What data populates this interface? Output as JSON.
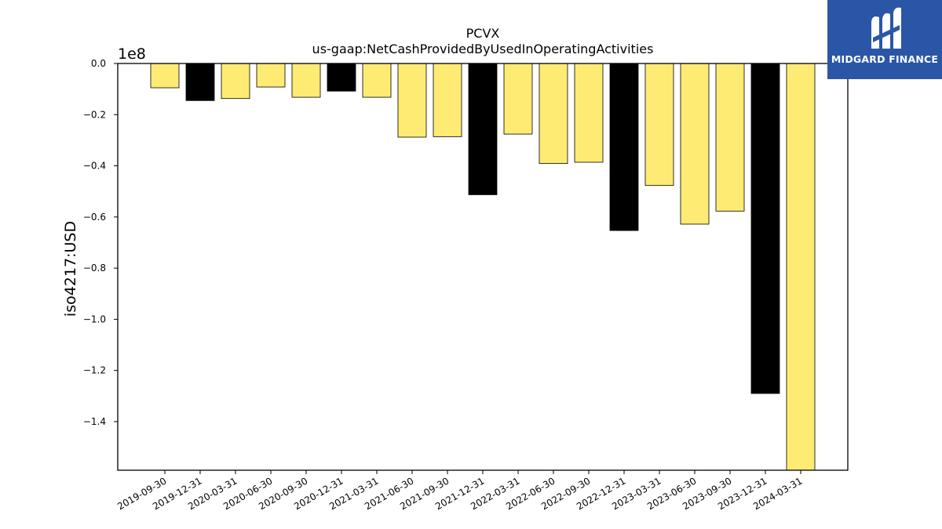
{
  "chart_data": {
    "type": "bar",
    "title": "PCVX",
    "subtitle": "us-gaap:NetCashProvidedByUsedInOperatingActivities",
    "ylabel": "iso4217:USD",
    "xlabel": "",
    "offset_label": "1e8",
    "ylim": [
      -159000000.0,
      0
    ],
    "yticks": [
      0.0,
      -0.2,
      -0.4,
      -0.6,
      -0.8,
      -1.0,
      -1.2,
      -1.4
    ],
    "yticklabels": [
      "0.0",
      "−0.2",
      "−0.4",
      "−0.6",
      "−0.8",
      "−1.0",
      "−1.2",
      "−1.4"
    ],
    "categories": [
      "2019-09-30",
      "2019-12-31",
      "2020-03-31",
      "2020-06-30",
      "2020-09-30",
      "2020-12-31",
      "2021-03-31",
      "2021-06-30",
      "2021-09-30",
      "2021-12-31",
      "2022-03-31",
      "2022-06-30",
      "2022-09-30",
      "2022-12-31",
      "2023-03-31",
      "2023-06-30",
      "2023-09-30",
      "2023-12-31",
      "2024-03-31"
    ],
    "values": [
      -9500000.0,
      -14500000.0,
      -13700000.0,
      -9200000.0,
      -13200000.0,
      -10800000.0,
      -13200000.0,
      -28800000.0,
      -28600000.0,
      -51300000.0,
      -27600000.0,
      -39100000.0,
      -38600000.0,
      -65300000.0,
      -47700000.0,
      -62800000.0,
      -57700000.0,
      -129000000.0,
      -159000000.0
    ],
    "bar_colors": [
      "#feeb74",
      "#000000",
      "#feeb74",
      "#feeb74",
      "#feeb74",
      "#000000",
      "#feeb74",
      "#feeb74",
      "#feeb74",
      "#000000",
      "#feeb74",
      "#feeb74",
      "#feeb74",
      "#000000",
      "#feeb74",
      "#feeb74",
      "#feeb74",
      "#000000",
      "#feeb74"
    ],
    "grid": false,
    "legend": "none"
  },
  "logo": {
    "text": "MIDGARD FINANCE",
    "background": "#2b56a8"
  }
}
